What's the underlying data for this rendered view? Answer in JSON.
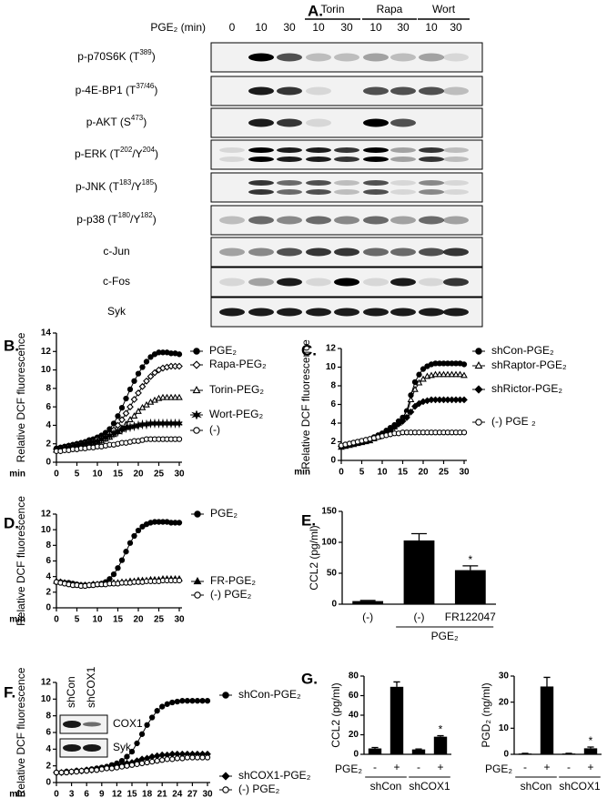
{
  "panel_a": {
    "label": "A.",
    "header": "PGE₂ (min)",
    "lanes": [
      "0",
      "10",
      "30",
      "10",
      "30",
      "10",
      "30",
      "10",
      "30"
    ],
    "groups": [
      "Torin",
      "Rapa",
      "Wort"
    ],
    "rows": [
      {
        "segments": [
          {
            "text": "p-p70S6K (T"
          },
          {
            "text": "389",
            "sup": true
          },
          {
            "text": ")"
          }
        ]
      },
      {
        "segments": [
          {
            "text": "p-4E-BP1 (T"
          },
          {
            "text": "37/46",
            "sup": true
          },
          {
            "text": ")"
          }
        ]
      },
      {
        "segments": [
          {
            "text": "p-AKT (S"
          },
          {
            "text": "473",
            "sup": true
          },
          {
            "text": ")"
          }
        ]
      },
      {
        "segments": [
          {
            "text": "p-ERK (T"
          },
          {
            "text": "202",
            "sup": true
          },
          {
            "text": "/Y"
          },
          {
            "text": "204",
            "sup": true
          },
          {
            "text": ")"
          }
        ]
      },
      {
        "segments": [
          {
            "text": "p-JNK (T"
          },
          {
            "text": "183",
            "sup": true
          },
          {
            "text": "/Y"
          },
          {
            "text": "185",
            "sup": true
          },
          {
            "text": ")"
          }
        ]
      },
      {
        "segments": [
          {
            "text": "p-p38 (T"
          },
          {
            "text": "180",
            "sup": true
          },
          {
            "text": "/Y"
          },
          {
            "text": "182",
            "sup": true
          },
          {
            "text": ")"
          }
        ]
      },
      {
        "segments": [
          {
            "text": "c-Jun"
          }
        ]
      },
      {
        "segments": [
          {
            "text": "c-Fos"
          }
        ]
      },
      {
        "segments": [
          {
            "text": "Syk"
          }
        ]
      }
    ]
  },
  "chart_data": [
    {
      "type": "line",
      "panel": "B.",
      "ylabel": "Relative DCF fluorescence",
      "xlabel": "min",
      "x": [
        0,
        1,
        2,
        3,
        4,
        5,
        6,
        7,
        8,
        9,
        10,
        11,
        12,
        13,
        14,
        15,
        16,
        17,
        18,
        19,
        20,
        21,
        22,
        23,
        24,
        25,
        26,
        27,
        28,
        29,
        30
      ],
      "xlim": [
        0,
        30
      ],
      "xticks": [
        0,
        5,
        10,
        15,
        20,
        25,
        30
      ],
      "ylim": [
        0,
        14
      ],
      "yticks": [
        0,
        2,
        4,
        6,
        8,
        10,
        12,
        14
      ],
      "series": [
        {
          "name": "PGE₂",
          "color": "#000000",
          "marker": "circle",
          "filled": true,
          "values": [
            1.5,
            1.6,
            1.7,
            1.8,
            1.9,
            2.0,
            2.1,
            2.2,
            2.4,
            2.5,
            2.7,
            2.9,
            3.2,
            3.6,
            4.2,
            5.0,
            5.9,
            6.9,
            7.9,
            8.8,
            9.6,
            10.3,
            10.9,
            11.4,
            11.7,
            11.9,
            11.9,
            11.9,
            11.8,
            11.8,
            11.7
          ]
        },
        {
          "name": "Rapa-PEG₂",
          "color": "#000000",
          "marker": "diamond",
          "filled": false,
          "values": [
            1.4,
            1.5,
            1.6,
            1.7,
            1.8,
            1.9,
            2.0,
            2.1,
            2.2,
            2.3,
            2.5,
            2.6,
            2.8,
            3.1,
            3.5,
            4.0,
            4.6,
            5.3,
            6.0,
            6.8,
            7.5,
            8.2,
            8.8,
            9.3,
            9.7,
            10.0,
            10.2,
            10.3,
            10.4,
            10.4,
            10.4
          ]
        },
        {
          "name": "Torin-PEG₂",
          "color": "#000000",
          "marker": "triangle",
          "filled": false,
          "values": [
            1.3,
            1.4,
            1.4,
            1.5,
            1.6,
            1.7,
            1.8,
            1.9,
            2.0,
            2.1,
            2.2,
            2.3,
            2.5,
            2.7,
            3.0,
            3.3,
            3.7,
            4.1,
            4.6,
            5.0,
            5.5,
            5.9,
            6.2,
            6.5,
            6.7,
            6.9,
            7.0,
            7.0,
            7.0,
            7.0,
            7.0
          ]
        },
        {
          "name": "Wort-PEG₂",
          "color": "#000000",
          "marker": "star",
          "filled": true,
          "values": [
            1.3,
            1.4,
            1.5,
            1.6,
            1.7,
            1.8,
            1.9,
            2.0,
            2.1,
            2.2,
            2.3,
            2.5,
            2.7,
            2.9,
            3.1,
            3.3,
            3.5,
            3.7,
            3.8,
            3.9,
            4.0,
            4.1,
            4.1,
            4.2,
            4.2,
            4.2,
            4.2,
            4.2,
            4.2,
            4.2,
            4.2
          ]
        },
        {
          "name": "(-)",
          "color": "#000000",
          "marker": "circle",
          "filled": false,
          "values": [
            1.2,
            1.2,
            1.3,
            1.3,
            1.4,
            1.4,
            1.5,
            1.5,
            1.6,
            1.6,
            1.7,
            1.7,
            1.8,
            1.9,
            1.9,
            2.0,
            2.1,
            2.1,
            2.2,
            2.3,
            2.3,
            2.4,
            2.5,
            2.5,
            2.5,
            2.5,
            2.5,
            2.5,
            2.5,
            2.5,
            2.5
          ]
        }
      ]
    },
    {
      "type": "line",
      "panel": "C.",
      "ylabel": "Relative DCF fluorescence",
      "xlabel": "min",
      "x": [
        0,
        1,
        2,
        3,
        4,
        5,
        6,
        7,
        8,
        9,
        10,
        11,
        12,
        13,
        14,
        15,
        16,
        17,
        18,
        19,
        20,
        21,
        22,
        23,
        24,
        25,
        26,
        27,
        28,
        29,
        30
      ],
      "xlim": [
        0,
        30
      ],
      "xticks": [
        0,
        5,
        10,
        15,
        20,
        25,
        30
      ],
      "ylim": [
        0,
        12
      ],
      "yticks": [
        0,
        2,
        4,
        6,
        8,
        10,
        12
      ],
      "series": [
        {
          "name": "shCon-PGE₂",
          "color": "#000000",
          "marker": "circle",
          "filled": true,
          "values": [
            1.6,
            1.7,
            1.8,
            1.9,
            2.0,
            2.1,
            2.2,
            2.3,
            2.5,
            2.7,
            2.9,
            3.2,
            3.5,
            3.8,
            4.2,
            4.6,
            5.3,
            7.0,
            8.4,
            9.2,
            9.8,
            10.1,
            10.3,
            10.4,
            10.4,
            10.4,
            10.4,
            10.4,
            10.4,
            10.4,
            10.3
          ]
        },
        {
          "name": "shRaptor-PGE₂",
          "color": "#000000",
          "marker": "triangle",
          "filled": false,
          "values": [
            1.4,
            1.5,
            1.6,
            1.7,
            1.8,
            1.9,
            2.0,
            2.1,
            2.3,
            2.5,
            2.7,
            3.0,
            3.3,
            3.6,
            4.0,
            4.4,
            5.0,
            6.5,
            7.6,
            8.3,
            8.7,
            9.0,
            9.1,
            9.2,
            9.2,
            9.2,
            9.2,
            9.2,
            9.2,
            9.2,
            9.1
          ]
        },
        {
          "name": "shRictor-PGE₂",
          "color": "#000000",
          "marker": "diamond",
          "filled": true,
          "values": [
            1.5,
            1.6,
            1.7,
            1.8,
            1.9,
            2.0,
            2.1,
            2.2,
            2.4,
            2.6,
            2.8,
            3.0,
            3.3,
            3.6,
            3.9,
            4.2,
            4.6,
            5.2,
            5.8,
            6.1,
            6.3,
            6.4,
            6.5,
            6.5,
            6.5,
            6.5,
            6.5,
            6.5,
            6.5,
            6.5,
            6.5
          ]
        },
        {
          "name": "(-) PGE ₂",
          "color": "#000000",
          "marker": "circle",
          "filled": false,
          "values": [
            1.6,
            1.7,
            1.8,
            1.9,
            2.0,
            2.1,
            2.2,
            2.3,
            2.4,
            2.5,
            2.6,
            2.7,
            2.8,
            2.9,
            2.9,
            3.0,
            3.0,
            3.0,
            3.0,
            3.0,
            3.0,
            3.0,
            3.0,
            3.0,
            3.0,
            3.0,
            3.0,
            3.0,
            3.0,
            3.0,
            3.0
          ]
        }
      ]
    },
    {
      "type": "line",
      "panel": "D.",
      "ylabel": "Relative DCF fluorescence",
      "xlabel": "min",
      "x": [
        0,
        1,
        2,
        3,
        4,
        5,
        6,
        7,
        8,
        9,
        10,
        11,
        12,
        13,
        14,
        15,
        16,
        17,
        18,
        19,
        20,
        21,
        22,
        23,
        24,
        25,
        26,
        27,
        28,
        29,
        30
      ],
      "xlim": [
        0,
        30
      ],
      "xticks": [
        0,
        5,
        10,
        15,
        20,
        25,
        30
      ],
      "ylim": [
        0,
        12
      ],
      "yticks": [
        0,
        2,
        4,
        6,
        8,
        10,
        12
      ],
      "series": [
        {
          "name": "PGE₂",
          "color": "#000000",
          "marker": "circle",
          "filled": true,
          "values": [
            3.3,
            3.3,
            3.2,
            3.2,
            3.1,
            3.0,
            2.9,
            2.9,
            2.9,
            3.0,
            3.0,
            3.1,
            3.3,
            3.7,
            4.3,
            5.1,
            6.1,
            7.2,
            8.3,
            9.2,
            9.9,
            10.4,
            10.7,
            10.9,
            11.0,
            11.0,
            11.0,
            11.0,
            10.9,
            10.9,
            10.9
          ]
        },
        {
          "name": "FR-PGE₂",
          "color": "#000000",
          "marker": "triangle",
          "filled": true,
          "values": [
            3.4,
            3.3,
            3.2,
            3.1,
            3.0,
            2.9,
            2.9,
            2.9,
            2.9,
            3.0,
            3.0,
            3.0,
            3.1,
            3.1,
            3.2,
            3.2,
            3.3,
            3.3,
            3.4,
            3.4,
            3.5,
            3.5,
            3.5,
            3.6,
            3.6,
            3.6,
            3.7,
            3.7,
            3.7,
            3.7,
            3.7
          ]
        },
        {
          "name": "(-) PGE₂",
          "color": "#000000",
          "marker": "circle",
          "filled": false,
          "values": [
            3.3,
            3.2,
            3.1,
            3.0,
            2.9,
            2.9,
            2.8,
            2.8,
            2.9,
            2.9,
            3.0,
            3.0,
            3.0,
            3.1,
            3.1,
            3.1,
            3.2,
            3.2,
            3.2,
            3.3,
            3.3,
            3.3,
            3.4,
            3.4,
            3.4,
            3.4,
            3.5,
            3.5,
            3.5,
            3.5,
            3.5
          ]
        }
      ]
    },
    {
      "type": "bar",
      "panel": "E.",
      "ylabel": "CCL2 (pg/ml)",
      "color": "#000000",
      "categories": [
        "(-)",
        "(-)",
        "FR122047"
      ],
      "groups": [
        null,
        "PGE₂",
        "PGE₂"
      ],
      "values": [
        5,
        103,
        55
      ],
      "errors": [
        1,
        11,
        7
      ],
      "significance": [
        null,
        null,
        "*"
      ],
      "ylim": [
        0,
        150
      ],
      "yticks": [
        0,
        50,
        100,
        150
      ]
    },
    {
      "type": "line",
      "panel": "F.",
      "ylabel": "Relative DCF fluorescence",
      "xlabel": "min",
      "inset": {
        "columns": [
          "shCon",
          "shCOX1"
        ],
        "rows": [
          "COX1",
          "Syk"
        ]
      },
      "x": [
        0,
        1,
        2,
        3,
        4,
        5,
        6,
        7,
        8,
        9,
        10,
        11,
        12,
        13,
        14,
        15,
        16,
        17,
        18,
        19,
        20,
        21,
        22,
        23,
        24,
        25,
        26,
        27,
        28,
        29,
        30
      ],
      "xlim": [
        0,
        30
      ],
      "xticks": [
        0,
        3,
        6,
        9,
        12,
        15,
        18,
        21,
        24,
        27,
        30
      ],
      "ylim": [
        0,
        12
      ],
      "yticks": [
        0,
        2,
        4,
        6,
        8,
        10,
        12
      ],
      "series": [
        {
          "name": "shCon-PGE₂",
          "color": "#000000",
          "marker": "circle",
          "filled": true,
          "values": [
            1.2,
            1.2,
            1.3,
            1.3,
            1.4,
            1.4,
            1.5,
            1.6,
            1.7,
            1.8,
            1.9,
            2.1,
            2.3,
            2.6,
            3.1,
            3.7,
            4.7,
            5.8,
            6.9,
            7.8,
            8.6,
            9.1,
            9.4,
            9.6,
            9.7,
            9.8,
            9.8,
            9.8,
            9.8,
            9.8,
            9.8
          ]
        },
        {
          "name": "shCOX1-PGE₂",
          "color": "#000000",
          "marker": "diamond",
          "filled": true,
          "values": [
            1.2,
            1.2,
            1.3,
            1.3,
            1.4,
            1.4,
            1.5,
            1.5,
            1.6,
            1.7,
            1.8,
            1.9,
            2.0,
            2.1,
            2.3,
            2.4,
            2.6,
            2.8,
            2.9,
            3.1,
            3.2,
            3.3,
            3.3,
            3.4,
            3.4,
            3.4,
            3.4,
            3.4,
            3.4,
            3.4,
            3.4
          ]
        },
        {
          "name": "(-) PGE₂",
          "color": "#000000",
          "marker": "circle",
          "filled": false,
          "values": [
            1.2,
            1.2,
            1.2,
            1.3,
            1.3,
            1.4,
            1.4,
            1.5,
            1.5,
            1.6,
            1.7,
            1.7,
            1.8,
            1.9,
            2.0,
            2.1,
            2.2,
            2.3,
            2.4,
            2.5,
            2.6,
            2.7,
            2.8,
            2.8,
            2.9,
            2.9,
            3.0,
            3.0,
            3.0,
            3.0,
            3.0
          ]
        }
      ]
    },
    {
      "type": "bar",
      "panel": "G.",
      "ylabel": "CCL2 (pg/ml)",
      "color": "#000000",
      "row_label": "PGE₂",
      "categories": [
        "-",
        "+",
        "-",
        "+"
      ],
      "groups": [
        "shCon",
        "shCon",
        "shCOX1",
        "shCOX1"
      ],
      "values": [
        6,
        69,
        5,
        18
      ],
      "errors": [
        1,
        5,
        0.5,
        1
      ],
      "significance": [
        null,
        null,
        null,
        "*"
      ],
      "ylim": [
        0,
        80
      ],
      "yticks": [
        0,
        20,
        40,
        60,
        80
      ]
    },
    {
      "type": "bar",
      "ylabel": "PGD₂ (ng/ml)",
      "color": "#000000",
      "row_label": "PGE₂",
      "categories": [
        "-",
        "+",
        "-",
        "+"
      ],
      "groups": [
        "shCon",
        "shCon",
        "shCOX1",
        "shCOX1"
      ],
      "values": [
        0.3,
        26,
        0.3,
        2.3
      ],
      "errors": [
        0.1,
        3.5,
        0.1,
        0.5
      ],
      "significance": [
        null,
        null,
        null,
        "*"
      ],
      "ylim": [
        0,
        30
      ],
      "yticks": [
        0,
        10,
        20,
        30
      ]
    }
  ]
}
